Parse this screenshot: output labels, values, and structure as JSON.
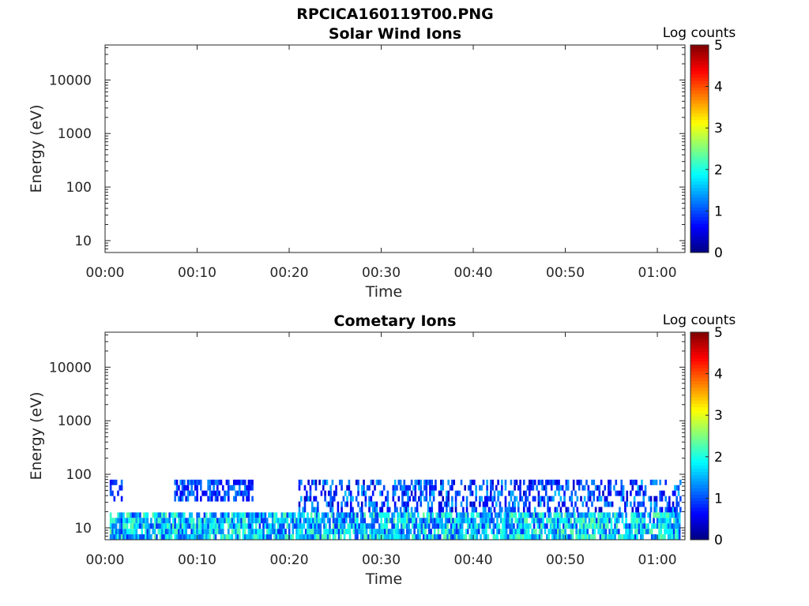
{
  "title": "RPCICA160119T00.PNG",
  "chart_data": [
    {
      "type": "heatmap",
      "title": "Solar Wind Ions",
      "xlabel": "Time",
      "ylabel": "Energy (eV)",
      "x_tick_labels": [
        "00:00",
        "00:10",
        "00:20",
        "00:30",
        "00:40",
        "00:50",
        "01:00"
      ],
      "x_range_minutes": [
        0,
        63
      ],
      "y_scale": "log",
      "y_tick_labels": [
        "10",
        "100",
        "1000",
        "10000"
      ],
      "y_range_eV": [
        6,
        45000
      ],
      "colorbar": {
        "label": "Log counts",
        "tick_labels": [
          "0",
          "1",
          "2",
          "3",
          "4",
          "5"
        ],
        "range": [
          0,
          5
        ],
        "colormap": "jet"
      },
      "bands": []
    },
    {
      "type": "heatmap",
      "title": "Cometary Ions",
      "xlabel": "Time",
      "ylabel": "Energy (eV)",
      "x_tick_labels": [
        "00:00",
        "00:10",
        "00:20",
        "00:30",
        "00:40",
        "00:50",
        "01:00"
      ],
      "x_range_minutes": [
        0,
        63
      ],
      "y_scale": "log",
      "y_tick_labels": [
        "10",
        "100",
        "1000",
        "10000"
      ],
      "y_range_eV": [
        6,
        45000
      ],
      "colorbar": {
        "label": "Log counts",
        "tick_labels": [
          "0",
          "1",
          "2",
          "3",
          "4",
          "5"
        ],
        "range": [
          0,
          5
        ],
        "colormap": "jet"
      },
      "bands": [
        {
          "t_start_min": 0.5,
          "t_end_min": 62.5,
          "e_low_eV": 6,
          "e_high_eV": 20,
          "log_counts": [
            0.8,
            2.4
          ],
          "fill": 0.85
        },
        {
          "t_start_min": 0.5,
          "t_end_min": 2,
          "e_low_eV": 30,
          "e_high_eV": 80,
          "log_counts": [
            0.5,
            1.2
          ],
          "fill": 0.5
        },
        {
          "t_start_min": 7.5,
          "t_end_min": 16,
          "e_low_eV": 30,
          "e_high_eV": 80,
          "log_counts": [
            0.5,
            1.4
          ],
          "fill": 0.6
        },
        {
          "t_start_min": 21,
          "t_end_min": 62.5,
          "e_low_eV": 20,
          "e_high_eV": 80,
          "log_counts": [
            0.3,
            1.6
          ],
          "fill": 0.45
        }
      ]
    }
  ],
  "colors": {
    "axis": "#262626",
    "background": "#ffffff"
  }
}
